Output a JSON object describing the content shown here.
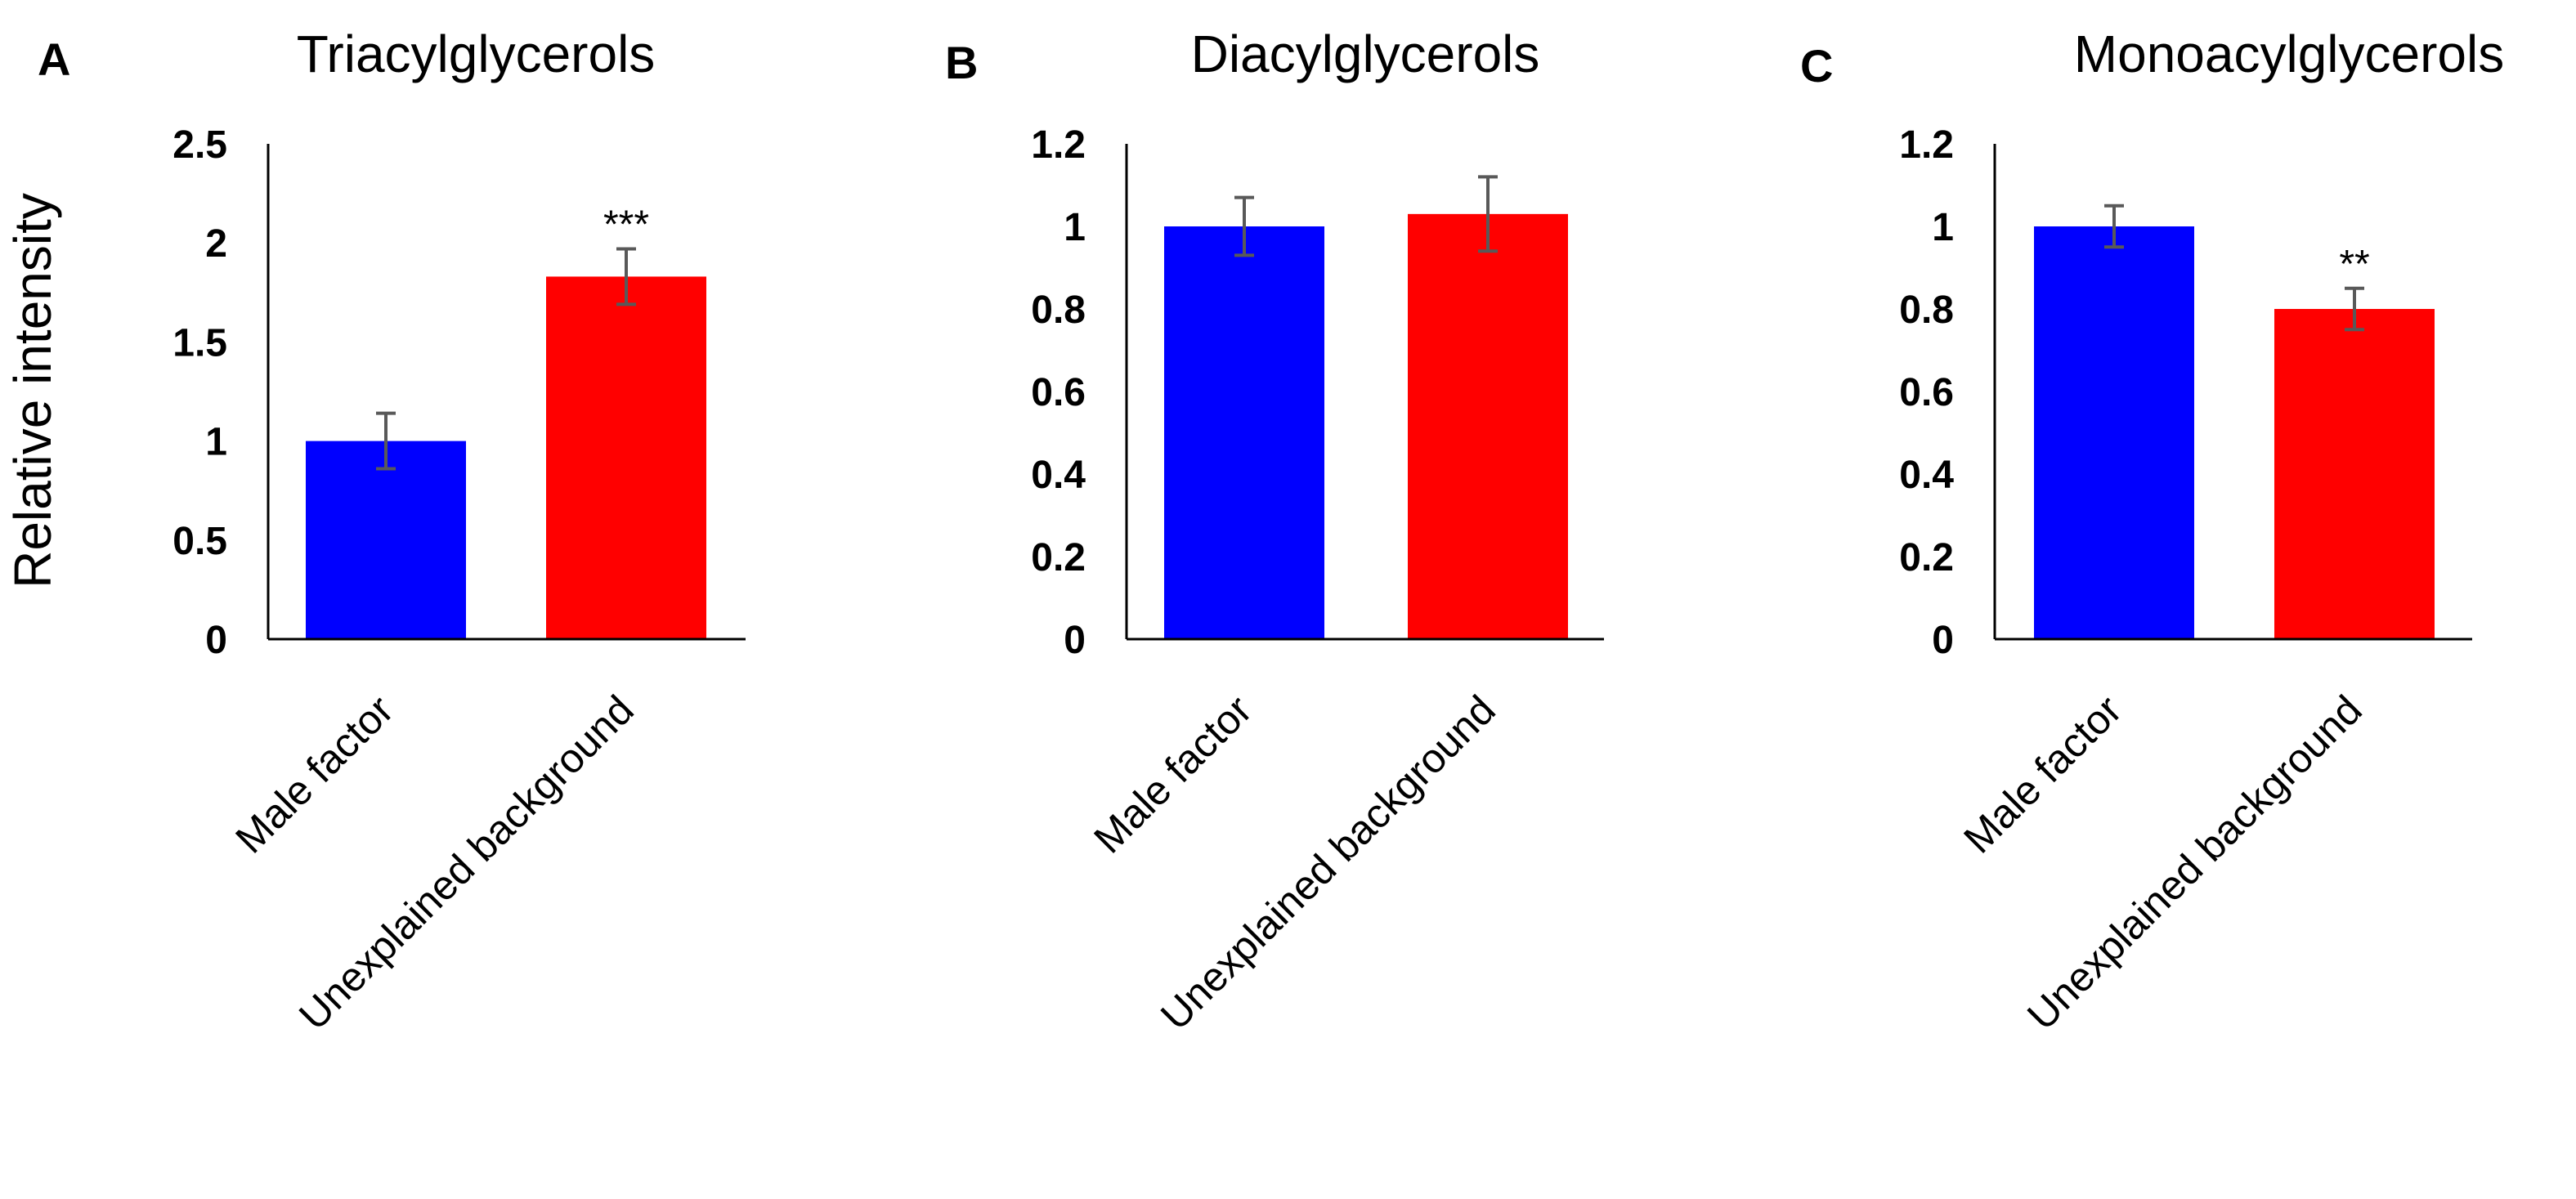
{
  "ylabel": "Relative intensity",
  "chart_data": [
    {
      "type": "bar",
      "panel": "A",
      "title": "Triacylglycerols",
      "categories": [
        "Male factor",
        "Unexplained background"
      ],
      "values": [
        1.0,
        1.83
      ],
      "errors": [
        0.14,
        0.14
      ],
      "significance": [
        "",
        "***"
      ],
      "colors": [
        "#0000ff",
        "#ff0000"
      ],
      "ylim": [
        0,
        2.5
      ],
      "yticks": [
        0,
        0.5,
        1,
        1.5,
        2,
        2.5
      ],
      "ytick_labels": [
        "0",
        "0.5",
        "1",
        "1.5",
        "2",
        "2.5"
      ],
      "ylabel": "Relative intensity",
      "xlabel": ""
    },
    {
      "type": "bar",
      "panel": "B",
      "title": "Diacylglycerols",
      "categories": [
        "Male factor",
        "Unexplained background"
      ],
      "values": [
        1.0,
        1.03
      ],
      "errors": [
        0.07,
        0.09
      ],
      "significance": [
        "",
        ""
      ],
      "colors": [
        "#0000ff",
        "#ff0000"
      ],
      "ylim": [
        0,
        1.2
      ],
      "yticks": [
        0,
        0.2,
        0.4,
        0.6,
        0.8,
        1,
        1.2
      ],
      "ytick_labels": [
        "0",
        "0.2",
        "0.4",
        "0.6",
        "0.8",
        "1",
        "1.2"
      ],
      "ylabel": "",
      "xlabel": ""
    },
    {
      "type": "bar",
      "panel": "C",
      "title": "Monoacylglycerols",
      "categories": [
        "Male factor",
        "Unexplained background"
      ],
      "values": [
        1.0,
        0.8
      ],
      "errors": [
        0.05,
        0.05
      ],
      "significance": [
        "",
        "**"
      ],
      "colors": [
        "#0000ff",
        "#ff0000"
      ],
      "ylim": [
        0,
        1.2
      ],
      "yticks": [
        0,
        0.2,
        0.4,
        0.6,
        0.8,
        1,
        1.2
      ],
      "ytick_labels": [
        "0",
        "0.2",
        "0.4",
        "0.6",
        "0.8",
        "1",
        "1.2"
      ],
      "ylabel": "",
      "xlabel": ""
    }
  ]
}
